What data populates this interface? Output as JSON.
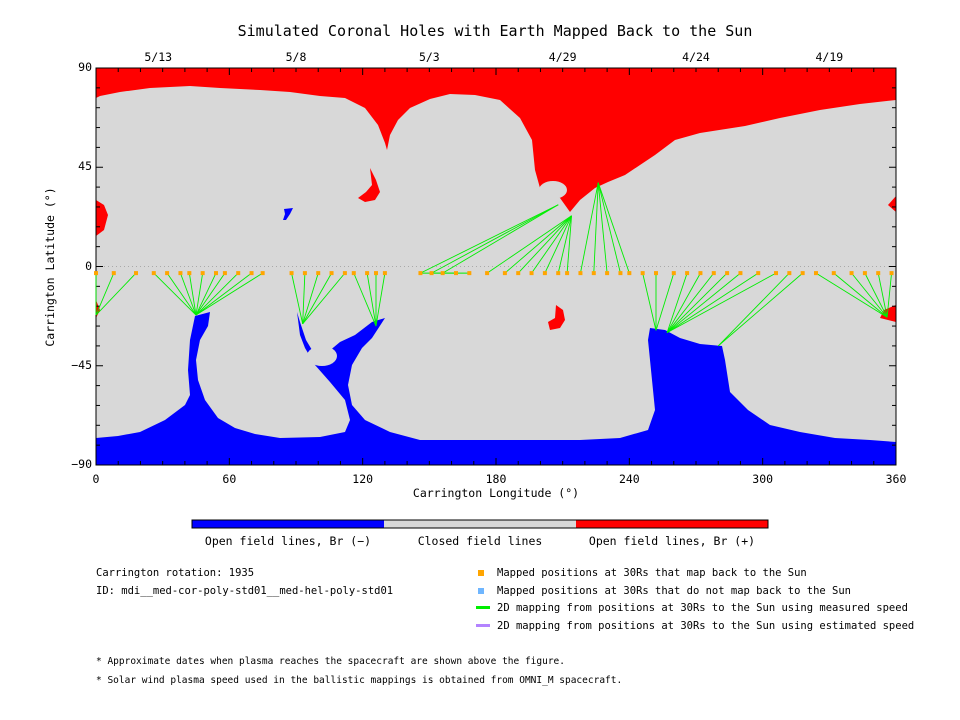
{
  "colors": {
    "closed": "#d8d8d8",
    "open_pos": "#ff0000",
    "open_neg": "#0000ff",
    "mapped_back": "#ffa500",
    "not_mapped": "#6fb6ff",
    "measured_line": "#00ee00",
    "estimated_line": "#b383ff"
  },
  "chart_data": {
    "type": "map",
    "title": "Simulated Coronal Holes with Earth Mapped Back to the Sun",
    "xlabel": "Carrington Longitude (°)",
    "ylabel": "Carrington Latitude (°)",
    "xlim": [
      0,
      360
    ],
    "ylim": [
      -90,
      90
    ],
    "x_ticks": [
      "0",
      "60",
      "120",
      "180",
      "240",
      "300",
      "360"
    ],
    "y_ticks": [
      "90",
      "45",
      "0",
      "−45",
      "−90"
    ],
    "top_dates": [
      {
        "label": "5/13",
        "lon": 28
      },
      {
        "label": "5/8",
        "lon": 90
      },
      {
        "label": "5/3",
        "lon": 150
      },
      {
        "label": "4/29",
        "lon": 210
      },
      {
        "label": "4/24",
        "lon": 270
      },
      {
        "label": "4/19",
        "lon": 330
      }
    ],
    "mapped_point_lons": [
      0,
      8,
      18,
      26,
      32,
      38,
      42,
      48,
      54,
      58,
      64,
      70,
      75,
      88,
      94,
      100,
      106,
      112,
      116,
      122,
      126,
      130,
      146,
      151,
      156,
      162,
      168,
      176,
      184,
      190,
      196,
      202,
      208,
      212,
      218,
      224,
      230,
      236,
      240,
      246,
      252,
      260,
      266,
      272,
      278,
      284,
      290,
      298,
      306,
      312,
      318,
      324,
      332,
      340,
      346,
      352,
      358
    ],
    "mapped_lat": -3,
    "footpoints": [
      {
        "lon": 0,
        "lat": -22,
        "from_lons": [
          0,
          8,
          18
        ]
      },
      {
        "lon": 45,
        "lat": -22,
        "from_lons": [
          26,
          32,
          38,
          42,
          48,
          54,
          58,
          64,
          70,
          75
        ]
      },
      {
        "lon": 93,
        "lat": -26,
        "from_lons": [
          88,
          94,
          100,
          106,
          112
        ]
      },
      {
        "lon": 126,
        "lat": -27,
        "from_lons": [
          116,
          122,
          126,
          130
        ]
      },
      {
        "lon": 155,
        "lat": -3,
        "from_lons": [
          146,
          151,
          156,
          162,
          168
        ]
      },
      {
        "lon": 208,
        "lat": 28,
        "from_lons": [
          146,
          151,
          156
        ]
      },
      {
        "lon": 214,
        "lat": 23,
        "from_lons": [
          176,
          184,
          190,
          196,
          202,
          208,
          212
        ]
      },
      {
        "lon": 226,
        "lat": 38,
        "from_lons": [
          218,
          224,
          230,
          236,
          240
        ]
      },
      {
        "lon": 252,
        "lat": -29,
        "from_lons": [
          246,
          252,
          260
        ]
      },
      {
        "lon": 257,
        "lat": -30,
        "from_lons": [
          266,
          272,
          278,
          284,
          290,
          298,
          306
        ]
      },
      {
        "lon": 280,
        "lat": -36,
        "from_lons": [
          312,
          318
        ]
      },
      {
        "lon": 356,
        "lat": -23,
        "from_lons": [
          324,
          332,
          340,
          346,
          352,
          358
        ]
      }
    ]
  },
  "colorbar": {
    "neg_label": "Open field lines, Br (−)",
    "closed_label": "Closed field lines",
    "pos_label": "Open field lines, Br (+)"
  },
  "info": {
    "rotation": "Carrington rotation: 1935",
    "id": "ID: mdi__med-cor-poly-std01__med-hel-poly-std01"
  },
  "legend": {
    "mapped_back": "Mapped positions at 30Rs that map back to the Sun",
    "not_mapped": "Mapped positions at 30Rs that do not map back to the Sun",
    "measured": "2D mapping from positions at 30Rs to the Sun using measured speed",
    "estimated": "2D mapping from positions at 30Rs to the Sun using estimated speed"
  },
  "notes": {
    "note1": "* Approximate dates when plasma reaches the spacecraft are shown above the figure.",
    "note2": "* Solar wind plasma speed used in the ballistic mappings is obtained from OMNI_M spacecraft."
  }
}
